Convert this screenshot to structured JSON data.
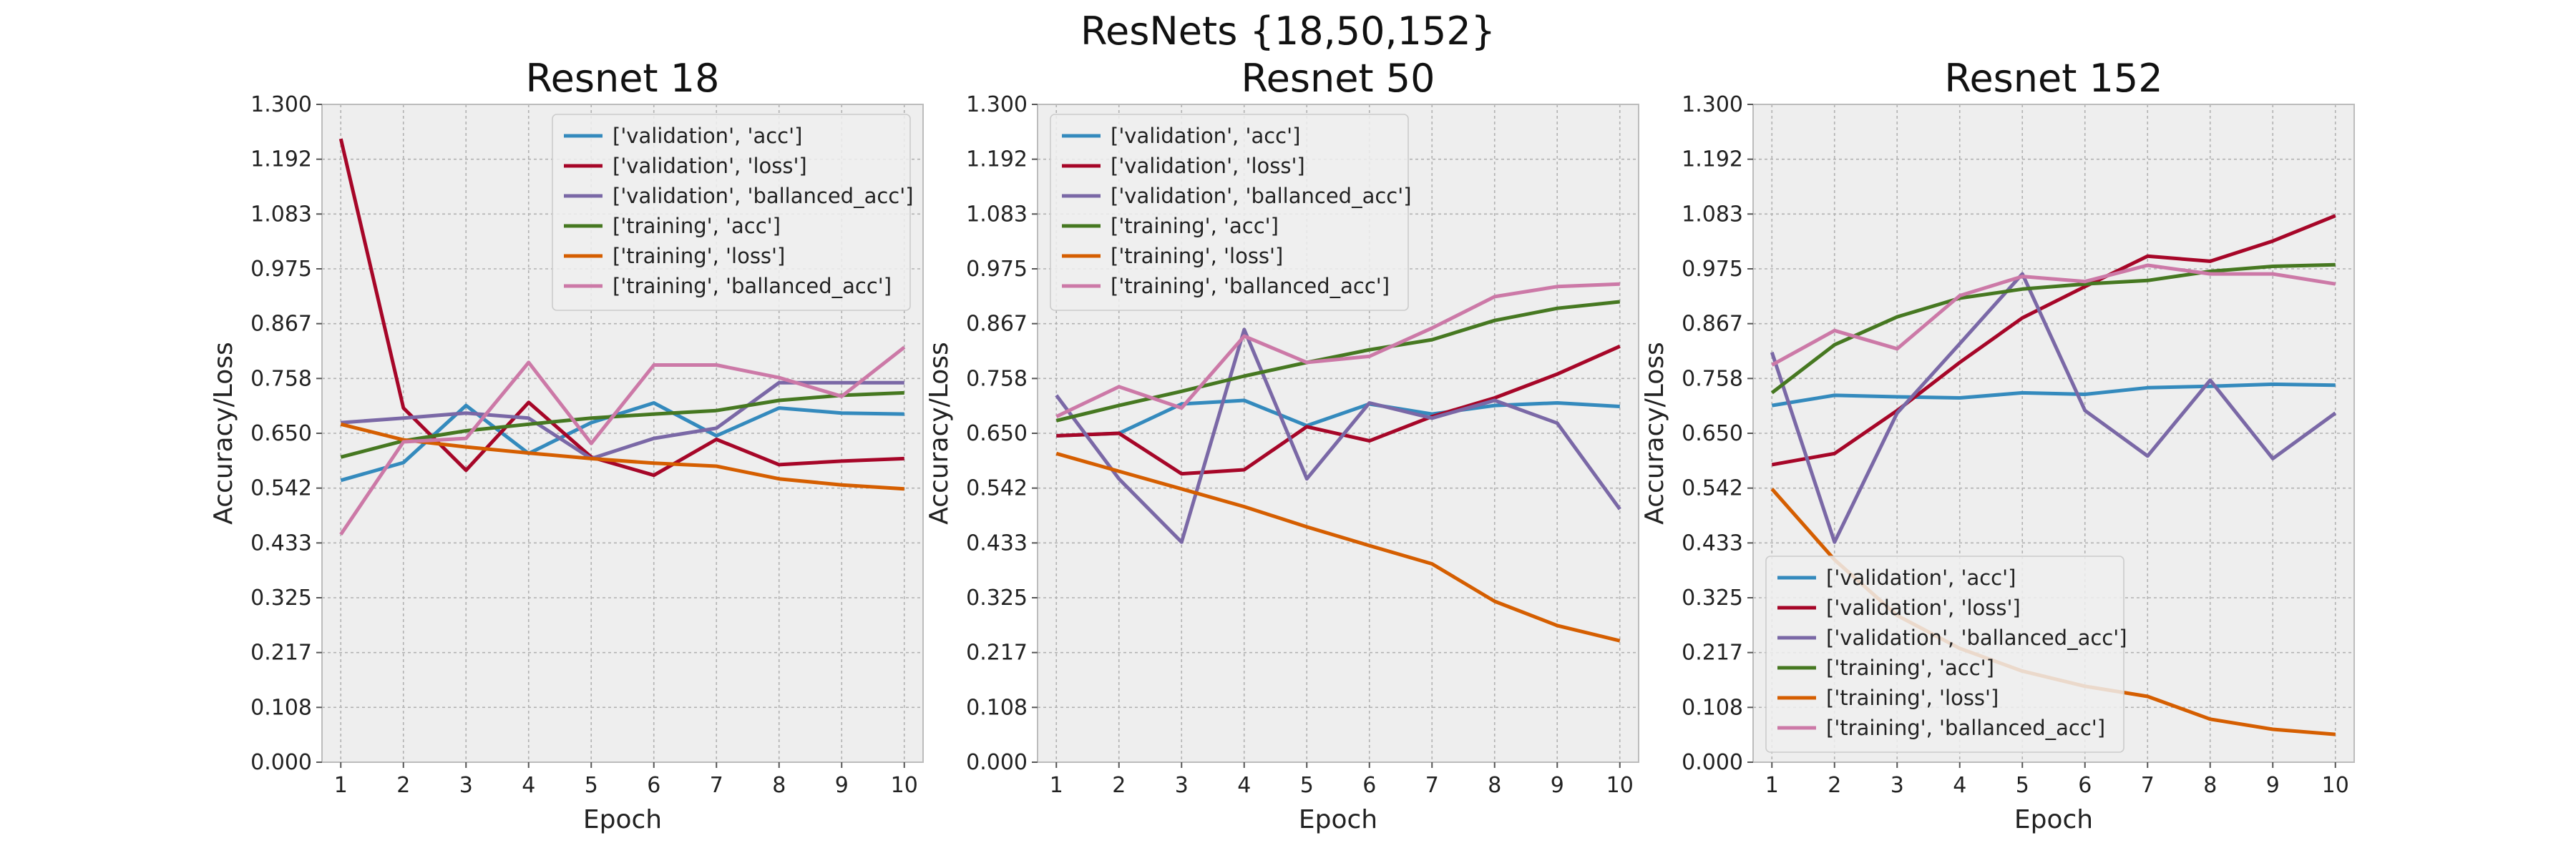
{
  "figure": {
    "suptitle": "ResNets {18,50,152}"
  },
  "chart_data": [
    {
      "type": "line",
      "title": "Resnet 18",
      "xlabel": "Epoch",
      "ylabel": "Accuracy/Loss",
      "x": [
        1,
        2,
        3,
        4,
        5,
        6,
        7,
        8,
        9,
        10
      ],
      "ylim": [
        0.0,
        1.3
      ],
      "yticks": [
        "0.000",
        "0.108",
        "0.217",
        "0.325",
        "0.433",
        "0.542",
        "0.650",
        "0.758",
        "0.867",
        "0.975",
        "1.083",
        "1.192",
        "1.300"
      ],
      "grid": true,
      "legend_position": "top-right",
      "series": [
        {
          "name": "['validation', 'acc']",
          "color": "#348ABD",
          "values": [
            0.557,
            0.592,
            0.705,
            0.61,
            0.671,
            0.71,
            0.645,
            0.7,
            0.69,
            0.688
          ]
        },
        {
          "name": "['validation', 'loss']",
          "color": "#A60628",
          "values": [
            1.232,
            0.7,
            0.577,
            0.711,
            0.603,
            0.567,
            0.638,
            0.588,
            0.595,
            0.6
          ]
        },
        {
          "name": "['validation', 'ballanced_acc']",
          "color": "#7A68A6",
          "values": [
            0.671,
            0.68,
            0.69,
            0.68,
            0.6,
            0.64,
            0.66,
            0.75,
            0.75,
            0.75
          ]
        },
        {
          "name": "['training', 'acc']",
          "color": "#467821",
          "values": [
            0.603,
            0.635,
            0.655,
            0.668,
            0.68,
            0.688,
            0.695,
            0.715,
            0.725,
            0.73
          ]
        },
        {
          "name": "['training', 'loss']",
          "color": "#D55E00",
          "values": [
            0.668,
            0.637,
            0.623,
            0.611,
            0.6,
            0.591,
            0.585,
            0.56,
            0.548,
            0.54
          ]
        },
        {
          "name": "['training', 'ballanced_acc']",
          "color": "#CC79A7",
          "values": [
            0.45,
            0.633,
            0.64,
            0.79,
            0.63,
            0.785,
            0.785,
            0.76,
            0.723,
            0.82
          ]
        }
      ]
    },
    {
      "type": "line",
      "title": "Resnet 50",
      "xlabel": "Epoch",
      "ylabel": "Accuracy/Loss",
      "x": [
        1,
        2,
        3,
        4,
        5,
        6,
        7,
        8,
        9,
        10
      ],
      "ylim": [
        0.0,
        1.3
      ],
      "yticks": [
        "0.000",
        "0.108",
        "0.217",
        "0.325",
        "0.433",
        "0.542",
        "0.650",
        "0.758",
        "0.867",
        "0.975",
        "1.083",
        "1.192",
        "1.300"
      ],
      "grid": true,
      "legend_position": "top-left",
      "series": [
        {
          "name": "['validation', 'acc']",
          "color": "#348ABD",
          "values": [
            0.645,
            0.65,
            0.708,
            0.715,
            0.665,
            0.708,
            0.688,
            0.705,
            0.71,
            0.703
          ]
        },
        {
          "name": "['validation', 'loss']",
          "color": "#A60628",
          "values": [
            0.645,
            0.65,
            0.57,
            0.578,
            0.663,
            0.635,
            0.683,
            0.72,
            0.767,
            0.822
          ]
        },
        {
          "name": "['validation', 'ballanced_acc']",
          "color": "#7A68A6",
          "values": [
            0.725,
            0.56,
            0.435,
            0.855,
            0.56,
            0.71,
            0.68,
            0.715,
            0.67,
            0.5
          ]
        },
        {
          "name": "['training', 'acc']",
          "color": "#467821",
          "values": [
            0.675,
            0.705,
            0.733,
            0.763,
            0.79,
            0.815,
            0.835,
            0.873,
            0.897,
            0.91
          ]
        },
        {
          "name": "['training', 'loss']",
          "color": "#D55E00",
          "values": [
            0.61,
            0.575,
            0.54,
            0.505,
            0.465,
            0.428,
            0.392,
            0.318,
            0.27,
            0.24
          ]
        },
        {
          "name": "['training', 'ballanced_acc']",
          "color": "#CC79A7",
          "values": [
            0.683,
            0.742,
            0.7,
            0.842,
            0.79,
            0.802,
            0.858,
            0.92,
            0.94,
            0.945
          ]
        }
      ]
    },
    {
      "type": "line",
      "title": "Resnet 152",
      "xlabel": "Epoch",
      "ylabel": "Accuracy/Loss",
      "x": [
        1,
        2,
        3,
        4,
        5,
        6,
        7,
        8,
        9,
        10
      ],
      "ylim": [
        0.0,
        1.3
      ],
      "yticks": [
        "0.000",
        "0.108",
        "0.217",
        "0.325",
        "0.433",
        "0.542",
        "0.650",
        "0.758",
        "0.867",
        "0.975",
        "1.083",
        "1.192",
        "1.300"
      ],
      "grid": true,
      "legend_position": "bottom-left",
      "series": [
        {
          "name": "['validation', 'acc']",
          "color": "#348ABD",
          "values": [
            0.705,
            0.725,
            0.722,
            0.72,
            0.73,
            0.727,
            0.74,
            0.743,
            0.747,
            0.745
          ]
        },
        {
          "name": "['validation', 'loss']",
          "color": "#A60628",
          "values": [
            0.588,
            0.61,
            0.695,
            0.79,
            0.878,
            0.94,
            1.0,
            0.99,
            1.03,
            1.08
          ]
        },
        {
          "name": "['validation', 'ballanced_acc']",
          "color": "#7A68A6",
          "values": [
            0.81,
            0.435,
            0.69,
            0.827,
            0.965,
            0.695,
            0.605,
            0.755,
            0.6,
            0.69
          ]
        },
        {
          "name": "['training', 'acc']",
          "color": "#467821",
          "values": [
            0.73,
            0.825,
            0.88,
            0.917,
            0.935,
            0.945,
            0.952,
            0.97,
            0.98,
            0.983
          ]
        },
        {
          "name": "['training', 'loss']",
          "color": "#D55E00",
          "values": [
            0.54,
            0.4,
            0.29,
            0.225,
            0.18,
            0.15,
            0.13,
            0.085,
            0.065,
            0.055
          ]
        },
        {
          "name": "['training', 'ballanced_acc']",
          "color": "#CC79A7",
          "values": [
            0.785,
            0.853,
            0.817,
            0.922,
            0.96,
            0.95,
            0.982,
            0.965,
            0.965,
            0.945
          ]
        }
      ]
    }
  ]
}
